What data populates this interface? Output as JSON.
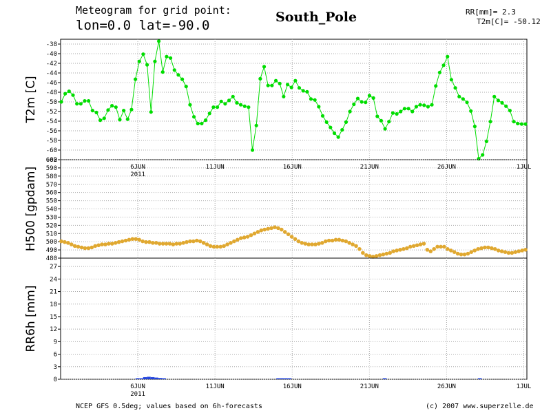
{
  "header": {
    "title": "Meteogram for grid point:",
    "coords": "lon=0.0 lat=-90.0",
    "station": "South_Pole",
    "rr_readout": "RR[mm]= 2.3",
    "t2m_readout": "T2m[C]= -50.12"
  },
  "footer": {
    "source": "NCEP GFS 0.5deg; values based on 6h-forecasts",
    "copyright": "(c) 2007 www.superzelle.de"
  },
  "chart_data": [
    {
      "type": "line",
      "ylabel": "T2m [C]",
      "ylim": [
        -62,
        -37
      ],
      "yticks": [
        "-38",
        "-40",
        "-42",
        "-44",
        "-46",
        "-48",
        "-50",
        "-52",
        "-54",
        "-56",
        "-58",
        "-60",
        "-62"
      ],
      "xticks": [
        "6JUN",
        "11JUN",
        "16JUN",
        "21JUN",
        "26JUN",
        "1JUL"
      ],
      "xtick_day": [
        6,
        11,
        16,
        21,
        26,
        31
      ],
      "xlim_day": [
        1,
        31.2
      ],
      "year_label": "2011",
      "grid": true,
      "color": "#00dd00",
      "series": [
        {
          "values": [
            -50,
            -48.3,
            -47.8,
            -48.6,
            -50.4,
            -50.4,
            -49.8,
            -49.8,
            -51.8,
            -52.2,
            -53.8,
            -53.4,
            -51.7,
            -50.8,
            -51.1,
            -53.7,
            -51.8,
            -53.6,
            -51.6,
            -45.3,
            -41.6,
            -40.1,
            -42.3,
            -52.1,
            -41.6,
            -37.4,
            -43.8,
            -40.6,
            -40.9,
            -43.4,
            -44.4,
            -45.3,
            -46.8,
            -50.6,
            -53.1,
            -54.5,
            -54.5,
            -53.8,
            -52.4,
            -51.1,
            -51.1,
            -49.9,
            -50.4,
            -49.7,
            -48.9,
            -50.2,
            -50.6,
            -50.9,
            -51.1,
            -60,
            -54.9,
            -45.2,
            -42.7,
            -46.6,
            -46.6,
            -45.6,
            -46.2,
            -48.9,
            -46.4,
            -47,
            -45.6,
            -47.1,
            -47.7,
            -47.9,
            -49.4,
            -49.6,
            -51,
            -52.9,
            -54.2,
            -55.3,
            -56.5,
            -57.3,
            -55.8,
            -54.2,
            -52,
            -50.5,
            -49.3,
            -50,
            -50.1,
            -48.7,
            -49.2,
            -53,
            -53.9,
            -55.6,
            -54.1,
            -52.3,
            -52.5,
            -52,
            -51.4,
            -51.4,
            -52,
            -51,
            -50.6,
            -50.7,
            -51,
            -50.6,
            -46.7,
            -43.9,
            -42.4,
            -40.6,
            -45.4,
            -47.1,
            -48.9,
            -49.4,
            -50.1,
            -51.9,
            -55.1,
            -61.8,
            -61,
            -58.2,
            -54.1,
            -48.9,
            -49.7,
            -50.2,
            -50.9,
            -51.8,
            -54.1,
            -54.5,
            -54.6,
            -54.6
          ]
        }
      ]
    },
    {
      "type": "scatter",
      "ylabel": "H500 [gpdam]",
      "ylim": [
        480,
        600
      ],
      "yticks": [
        "600",
        "590",
        "580",
        "570",
        "560",
        "550",
        "540",
        "530",
        "520",
        "510",
        "500",
        "490",
        "480"
      ],
      "color": "#e0a830",
      "series": [
        {
          "values": [
            500.5,
            499.6,
            498.6,
            496.7,
            494.8,
            493.9,
            493,
            492.1,
            492.1,
            493,
            494.8,
            495.7,
            496.7,
            496.7,
            497.6,
            497.6,
            498.6,
            499.6,
            500.5,
            501.4,
            502.4,
            503.3,
            503.3,
            502.4,
            500.5,
            499.6,
            499.6,
            498.6,
            498.6,
            497.6,
            497.6,
            497.6,
            497.6,
            496.7,
            497.6,
            497.6,
            498.6,
            499.6,
            500.5,
            500.5,
            501.4,
            500.5,
            498.6,
            496.7,
            494.8,
            493.9,
            493.9,
            493.9,
            494.8,
            496.7,
            498.6,
            500.5,
            502.4,
            504.3,
            505.2,
            506.1,
            508,
            510,
            511.9,
            513.8,
            514.8,
            515.7,
            516.6,
            517.6,
            516.6,
            514.8,
            511.9,
            509.1,
            506.1,
            503.3,
            500.5,
            498.6,
            497.6,
            496.7,
            496.7,
            496.7,
            497.6,
            498.6,
            500.5,
            501.4,
            501.4,
            502.4,
            502.4,
            501.4,
            500.5,
            498.6,
            496.7,
            494.8,
            491.1,
            486.4,
            483.6,
            482.6,
            481.7,
            482.6,
            483.6,
            484.5,
            485.4,
            486.4,
            488.3,
            489.3,
            490.2,
            491.1,
            492.1,
            493.9,
            494.8,
            495.7,
            496.7,
            497.6,
            490.2,
            488.3,
            491.1,
            493.9,
            493.9,
            493.9,
            491.1,
            489.3,
            487.4,
            485.4,
            484.5,
            484.5,
            485.4,
            487.4,
            489.3,
            491.1,
            492.1,
            493,
            493,
            492.1,
            491.1,
            489.3,
            488.3,
            487.4,
            486.4,
            486.4,
            487.4,
            488.3,
            489.3,
            490.2
          ]
        }
      ]
    },
    {
      "type": "bar",
      "ylabel": "RR6h [mm]",
      "ylim": [
        0,
        29
      ],
      "yticks": [
        "27",
        "24",
        "21",
        "18",
        "15",
        "12",
        "9",
        "6",
        "3",
        "0"
      ],
      "color": "#2244dd",
      "series": [
        {
          "values": [
            0,
            0,
            0,
            0,
            0,
            0,
            0,
            0,
            0,
            0,
            0,
            0,
            0,
            0,
            0,
            0,
            0,
            0,
            0,
            0,
            0.1,
            0.2,
            0.5,
            0.6,
            0.5,
            0.4,
            0.3,
            0.1,
            0,
            0,
            0,
            0,
            0,
            0,
            0,
            0,
            0,
            0,
            0,
            0,
            0,
            0,
            0,
            0,
            0,
            0,
            0,
            0,
            0,
            0,
            0,
            0,
            0,
            0,
            0,
            0,
            0,
            0.1,
            0.2,
            0.2,
            0.1,
            0,
            0,
            0,
            0,
            0,
            0,
            0,
            0,
            0,
            0,
            0,
            0,
            0,
            0,
            0,
            0,
            0,
            0,
            0,
            0,
            0,
            0,
            0,
            0,
            0.1,
            0,
            0,
            0,
            0,
            0,
            0,
            0,
            0,
            0,
            0,
            0,
            0,
            0,
            0,
            0,
            0,
            0,
            0,
            0,
            0,
            0,
            0,
            0,
            0,
            0.1,
            0,
            0,
            0,
            0,
            0,
            0,
            0,
            0,
            0,
            0,
            0,
            0
          ]
        }
      ]
    }
  ]
}
